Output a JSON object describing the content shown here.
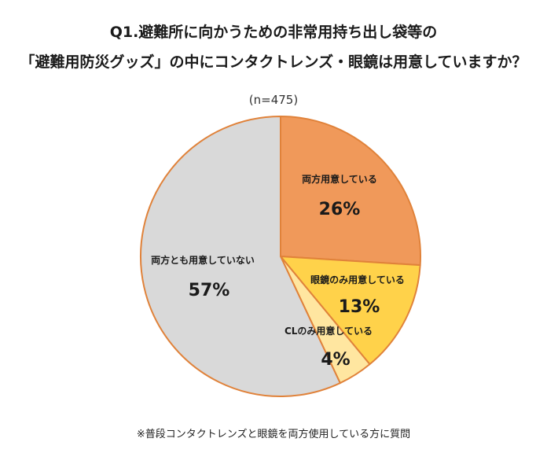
{
  "title_line1": "Q1.避難所に向かうための非常用持ち出し袋等の",
  "title_line2": "「避難用防災グッズ」の中にコンタクトレンズ・眼鏡は用意していますか？",
  "sample_size": "(n=475)",
  "footnote": "※普段コンタクトレンズと眼鏡を両方使用している方に質問",
  "chart_data": {
    "type": "pie",
    "title": "",
    "categories": [
      "両方用意している",
      "眼鏡のみ用意している",
      "CLのみ用意している",
      "両方とも用意していない"
    ],
    "values": [
      26,
      13,
      4,
      57
    ],
    "value_labels": [
      "26%",
      "13%",
      "4%",
      "57%"
    ],
    "colors": [
      "#F0995A",
      "#FFD24A",
      "#FFE6A0",
      "#D9D9D9"
    ],
    "stroke_color": "#E0823A",
    "start_angle": "12 o'clock",
    "direction": "clockwise",
    "legend": "none"
  }
}
